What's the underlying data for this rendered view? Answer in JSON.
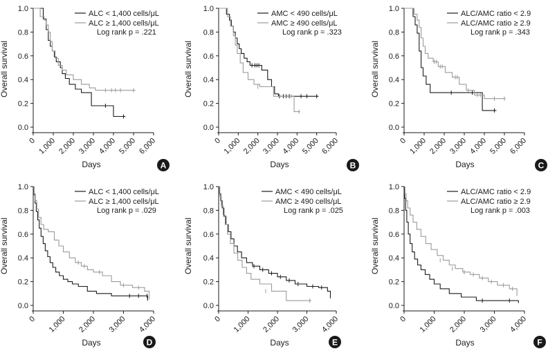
{
  "colors": {
    "dark": "#1a1a1a",
    "light": "#9a9a9a",
    "badge_bg": "#1a1a1a",
    "badge_fg": "#ffffff"
  },
  "chart_data": [
    {
      "panel": "A",
      "type": "line",
      "step": true,
      "ylabel": "Overall survival",
      "xlabel": "Days",
      "xlim": [
        0,
        6000
      ],
      "ylim": [
        0,
        1.0
      ],
      "xticks": [
        "0",
        "1,000",
        "2,000",
        "3,000",
        "4,000",
        "5,000",
        "6,000"
      ],
      "xtick_values": [
        0,
        1000,
        2000,
        3000,
        4000,
        5000,
        6000
      ],
      "yticks": [
        "0.0",
        "0.2",
        "0.4",
        "0.6",
        "0.8",
        "1.0"
      ],
      "ytick_values": [
        0.0,
        0.2,
        0.4,
        0.6,
        0.8,
        1.0
      ],
      "log_rank": "Log rank p = .221",
      "legend_position": "top-right",
      "series": [
        {
          "name": "ALC < 1,400 cells/μL",
          "style": "dark",
          "x": [
            0,
            250,
            500,
            650,
            750,
            850,
            950,
            1050,
            1150,
            1350,
            1450,
            1600,
            1800,
            2100,
            2400,
            2700,
            2900,
            3700,
            4000,
            4600
          ],
          "y": [
            1.0,
            1.0,
            0.91,
            0.82,
            0.73,
            0.68,
            0.64,
            0.59,
            0.55,
            0.5,
            0.45,
            0.41,
            0.36,
            0.32,
            0.29,
            0.29,
            0.18,
            0.18,
            0.09,
            0.09
          ],
          "censor_x": [
            3600,
            4500
          ],
          "censor_y": [
            0.18,
            0.09
          ]
        },
        {
          "name": "ALC ≥ 1,400 cells/μL",
          "style": "light",
          "x": [
            0,
            250,
            350,
            550,
            650,
            750,
            850,
            950,
            1100,
            1250,
            1450,
            1650,
            2000,
            2400,
            2800,
            3100,
            3400,
            5100
          ],
          "y": [
            1.0,
            1.0,
            0.93,
            0.9,
            0.86,
            0.8,
            0.72,
            0.64,
            0.58,
            0.52,
            0.48,
            0.44,
            0.4,
            0.36,
            0.33,
            0.31,
            0.31,
            0.31
          ],
          "censor_x": [
            3600,
            3900,
            4100,
            4350,
            5000
          ],
          "censor_y": [
            0.31,
            0.31,
            0.31,
            0.31,
            0.31
          ]
        }
      ]
    },
    {
      "panel": "B",
      "type": "line",
      "step": true,
      "ylabel": "Overall survival",
      "xlabel": "Days",
      "xlim": [
        0,
        6000
      ],
      "ylim": [
        0,
        1.0
      ],
      "xticks": [
        "0",
        "1,000",
        "2,000",
        "3,000",
        "4,000",
        "5,000",
        "6,000"
      ],
      "xtick_values": [
        0,
        1000,
        2000,
        3000,
        4000,
        5000,
        6000
      ],
      "yticks": [
        "0.0",
        "0.2",
        "0.4",
        "0.6",
        "0.8",
        "1.0"
      ],
      "ytick_values": [
        0.0,
        0.2,
        0.4,
        0.6,
        0.8,
        1.0
      ],
      "log_rank": "Log rank p = .323",
      "legend_position": "top-right",
      "series": [
        {
          "name": "AMC < 490 cells/μL",
          "style": "dark",
          "x": [
            0,
            250,
            400,
            550,
            650,
            750,
            850,
            950,
            1050,
            1150,
            1300,
            1450,
            1600,
            1800,
            2200,
            2500,
            2700,
            2850,
            3050,
            4000,
            5100
          ],
          "y": [
            1.0,
            1.0,
            0.95,
            0.9,
            0.85,
            0.8,
            0.75,
            0.7,
            0.66,
            0.62,
            0.58,
            0.55,
            0.52,
            0.52,
            0.48,
            0.4,
            0.34,
            0.28,
            0.26,
            0.26,
            0.26
          ],
          "censor_x": [
            1700,
            1850,
            1950,
            2050,
            3100,
            3300,
            3450,
            3600,
            4200,
            4500,
            5000
          ],
          "censor_y": [
            0.52,
            0.52,
            0.52,
            0.52,
            0.26,
            0.26,
            0.26,
            0.26,
            0.26,
            0.26,
            0.26
          ]
        },
        {
          "name": "AMC ≥ 490 cells/μL",
          "style": "light",
          "x": [
            0,
            300,
            450,
            600,
            750,
            850,
            950,
            1100,
            1250,
            1500,
            1800,
            2100,
            2800,
            3600,
            3850,
            4150
          ],
          "y": [
            1.0,
            1.0,
            0.93,
            0.85,
            0.77,
            0.69,
            0.62,
            0.54,
            0.46,
            0.4,
            0.36,
            0.34,
            0.26,
            0.26,
            0.13,
            0.13
          ],
          "censor_x": [
            2000,
            3700,
            4100
          ],
          "censor_y": [
            0.34,
            0.26,
            0.13
          ]
        }
      ]
    },
    {
      "panel": "C",
      "type": "line",
      "step": true,
      "ylabel": "Overall survival",
      "xlabel": "Days",
      "xlim": [
        0,
        6000
      ],
      "ylim": [
        0,
        1.0
      ],
      "xticks": [
        "0",
        "1,000",
        "2,000",
        "3,000",
        "4,000",
        "5,000",
        "6,000"
      ],
      "xtick_values": [
        0,
        1000,
        2000,
        3000,
        4000,
        5000,
        6000
      ],
      "yticks": [
        "0.0",
        "0.2",
        "0.4",
        "0.6",
        "0.8",
        "1.0"
      ],
      "ytick_values": [
        0.0,
        0.2,
        0.4,
        0.6,
        0.8,
        1.0
      ],
      "log_rank": "Log rank p = .343",
      "legend_position": "top-right",
      "series": [
        {
          "name": "ALC/AMC ratio < 2.9",
          "style": "dark",
          "x": [
            0,
            300,
            450,
            550,
            650,
            750,
            850,
            950,
            1100,
            1300,
            1500,
            2300,
            3900,
            4600
          ],
          "y": [
            1.0,
            1.0,
            0.93,
            0.86,
            0.79,
            0.64,
            0.5,
            0.43,
            0.36,
            0.29,
            0.29,
            0.29,
            0.14,
            0.14
          ],
          "censor_x": [
            2350,
            3400,
            4500
          ],
          "censor_y": [
            0.29,
            0.29,
            0.14
          ]
        },
        {
          "name": "ALC/AMC ratio ≥ 2.9",
          "style": "light",
          "x": [
            0,
            350,
            500,
            650,
            750,
            850,
            950,
            1050,
            1200,
            1450,
            1700,
            2050,
            2400,
            2750,
            3100,
            3500,
            4000,
            5050
          ],
          "y": [
            1.0,
            1.0,
            0.95,
            0.9,
            0.84,
            0.75,
            0.68,
            0.62,
            0.58,
            0.55,
            0.51,
            0.46,
            0.42,
            0.36,
            0.31,
            0.27,
            0.24,
            0.24
          ],
          "censor_x": [
            1500,
            1600,
            1800,
            1900,
            2550,
            2650,
            3200,
            3650,
            3800,
            4500,
            5000
          ],
          "censor_y": [
            0.55,
            0.55,
            0.51,
            0.51,
            0.42,
            0.42,
            0.31,
            0.27,
            0.27,
            0.24,
            0.24
          ]
        }
      ]
    },
    {
      "panel": "D",
      "type": "line",
      "step": true,
      "ylabel": "Overall survival",
      "xlabel": "Days",
      "xlim": [
        0,
        4000
      ],
      "ylim": [
        0,
        1.0
      ],
      "xticks": [
        "0",
        "1,000",
        "2,000",
        "3,000",
        "4,000"
      ],
      "xtick_values": [
        0,
        1000,
        2000,
        3000,
        4000
      ],
      "yticks": [
        "0.0",
        "0.2",
        "0.4",
        "0.6",
        "0.8",
        "1.0"
      ],
      "ytick_values": [
        0.0,
        0.2,
        0.4,
        0.6,
        0.8,
        1.0
      ],
      "log_rank": "Log rank p = .029",
      "legend_position": "top-right",
      "series": [
        {
          "name": "ALC < 1,400 cells/μL",
          "style": "dark",
          "x": [
            0,
            30,
            60,
            100,
            150,
            200,
            260,
            330,
            400,
            480,
            560,
            650,
            750,
            870,
            1000,
            1150,
            1300,
            1500,
            1800,
            2100,
            2600,
            3000,
            3800
          ],
          "y": [
            1.0,
            0.93,
            0.86,
            0.79,
            0.72,
            0.65,
            0.58,
            0.52,
            0.46,
            0.41,
            0.36,
            0.32,
            0.28,
            0.25,
            0.22,
            0.2,
            0.18,
            0.16,
            0.12,
            0.1,
            0.08,
            0.08,
            0.04
          ],
          "censor_x": [
            3200,
            3500,
            3780
          ],
          "censor_y": [
            0.08,
            0.08,
            0.08
          ]
        },
        {
          "name": "ALC ≥ 1,400 cells/μL",
          "style": "light",
          "x": [
            0,
            30,
            70,
            120,
            180,
            260,
            350,
            500,
            700,
            850,
            1000,
            1200,
            1400,
            1600,
            1800,
            2000,
            2300,
            2600,
            2900,
            3300,
            3700,
            3850
          ],
          "y": [
            1.0,
            0.94,
            0.88,
            0.81,
            0.74,
            0.68,
            0.64,
            0.62,
            0.55,
            0.5,
            0.45,
            0.4,
            0.36,
            0.33,
            0.3,
            0.28,
            0.25,
            0.2,
            0.17,
            0.15,
            0.12,
            0.05
          ],
          "censor_x": [
            1500,
            1700,
            2200,
            3000,
            3500
          ],
          "censor_y": [
            0.36,
            0.33,
            0.28,
            0.17,
            0.15
          ]
        }
      ]
    },
    {
      "panel": "E",
      "type": "line",
      "step": true,
      "ylabel": "Overall survival",
      "xlabel": "Days",
      "xlim": [
        0,
        4000
      ],
      "ylim": [
        0,
        1.0
      ],
      "xticks": [
        "0",
        "1,000",
        "2,000",
        "3,000",
        "4,000"
      ],
      "xtick_values": [
        0,
        1000,
        2000,
        3000,
        4000
      ],
      "yticks": [
        "0.0",
        "0.2",
        "0.4",
        "0.6",
        "0.8",
        "1.0"
      ],
      "ytick_values": [
        0.0,
        0.2,
        0.4,
        0.6,
        0.8,
        1.0
      ],
      "log_rank": "Log rank p = .025",
      "legend_position": "top-right",
      "series": [
        {
          "name": "AMC < 490 cells/μL",
          "style": "dark",
          "x": [
            0,
            30,
            70,
            120,
            180,
            250,
            330,
            420,
            520,
            640,
            780,
            950,
            1150,
            1400,
            1700,
            2000,
            2300,
            2600,
            3000,
            3400,
            3700,
            3800
          ],
          "y": [
            1.0,
            0.94,
            0.88,
            0.82,
            0.75,
            0.68,
            0.62,
            0.56,
            0.5,
            0.45,
            0.4,
            0.36,
            0.33,
            0.3,
            0.27,
            0.24,
            0.21,
            0.18,
            0.16,
            0.15,
            0.12,
            0.06
          ],
          "censor_x": [
            1200,
            1500,
            1800,
            2100,
            2400,
            2700,
            3200,
            3500
          ],
          "censor_y": [
            0.33,
            0.3,
            0.27,
            0.24,
            0.21,
            0.18,
            0.16,
            0.15
          ]
        },
        {
          "name": "AMC ≥ 490 cells/μL",
          "style": "light",
          "x": [
            0,
            40,
            90,
            150,
            220,
            300,
            400,
            520,
            650,
            800,
            950,
            1100,
            1400,
            1800,
            2300,
            3150
          ],
          "y": [
            1.0,
            0.92,
            0.84,
            0.76,
            0.68,
            0.6,
            0.52,
            0.44,
            0.38,
            0.32,
            0.27,
            0.22,
            0.18,
            0.12,
            0.04,
            0.04
          ],
          "censor_x": [
            1600,
            3100
          ],
          "censor_y": [
            0.12,
            0.04
          ]
        }
      ]
    },
    {
      "panel": "F",
      "type": "line",
      "step": true,
      "ylabel": "Overall survival",
      "xlabel": "Days",
      "xlim": [
        0,
        4000
      ],
      "ylim": [
        0,
        1.0
      ],
      "xticks": [
        "0",
        "1,000",
        "2,000",
        "3,000",
        "4,000"
      ],
      "xtick_values": [
        0,
        1000,
        2000,
        3000,
        4000
      ],
      "yticks": [
        "0.0",
        "0.2",
        "0.4",
        "0.6",
        "0.8",
        "1.0"
      ],
      "ytick_values": [
        0.0,
        0.2,
        0.4,
        0.6,
        0.8,
        1.0
      ],
      "log_rank": "Log rank p = .003",
      "legend_position": "top-right",
      "series": [
        {
          "name": "ALC/AMC ratio < 2.9",
          "style": "dark",
          "x": [
            0,
            20,
            50,
            90,
            140,
            200,
            270,
            350,
            450,
            560,
            700,
            850,
            1000,
            1200,
            1500,
            1900,
            2400,
            3000,
            3800
          ],
          "y": [
            1.0,
            0.9,
            0.8,
            0.7,
            0.6,
            0.52,
            0.45,
            0.39,
            0.34,
            0.3,
            0.26,
            0.22,
            0.18,
            0.14,
            0.1,
            0.07,
            0.04,
            0.04,
            0.02
          ],
          "censor_x": [
            2600,
            3500
          ],
          "censor_y": [
            0.04,
            0.04
          ]
        },
        {
          "name": "ALC/AMC ratio ≥ 2.9",
          "style": "light",
          "x": [
            0,
            30,
            70,
            120,
            200,
            300,
            420,
            560,
            720,
            900,
            1100,
            1300,
            1500,
            1700,
            1950,
            2200,
            2500,
            2800,
            3100,
            3500,
            3750
          ],
          "y": [
            1.0,
            0.94,
            0.88,
            0.82,
            0.76,
            0.7,
            0.64,
            0.58,
            0.52,
            0.47,
            0.42,
            0.38,
            0.34,
            0.31,
            0.28,
            0.26,
            0.23,
            0.2,
            0.17,
            0.14,
            0.08
          ],
          "censor_x": [
            1200,
            1600,
            2000,
            2300,
            2600,
            2900,
            3300,
            3600
          ],
          "censor_y": [
            0.38,
            0.31,
            0.28,
            0.26,
            0.23,
            0.2,
            0.17,
            0.14
          ]
        }
      ]
    }
  ]
}
